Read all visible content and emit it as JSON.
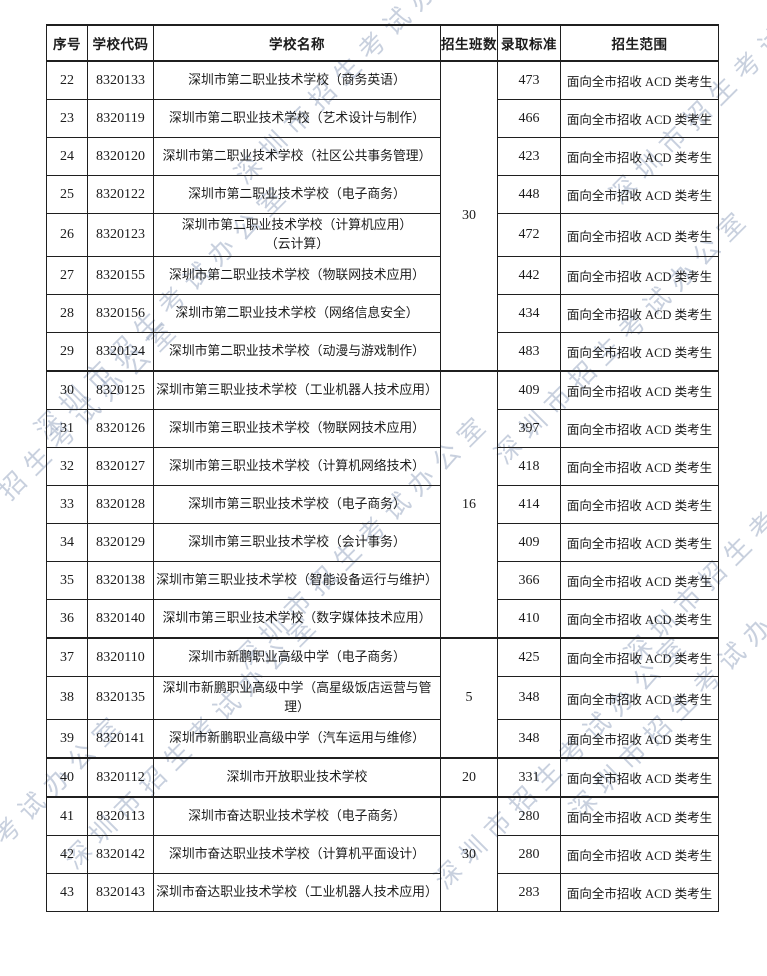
{
  "watermark": {
    "text": "深圳市招生考试办公室",
    "color": "#8b9dba"
  },
  "table": {
    "headers": [
      "序号",
      "学校代码",
      "学校名称",
      "招生班数",
      "录取标准",
      "招生范围"
    ],
    "rows": [
      {
        "no": "22",
        "code": "8320133",
        "name": "深圳市第二职业技术学校（商务英语）",
        "standard": "473",
        "scope": "面向全市招收 ACD 类考生"
      },
      {
        "no": "23",
        "code": "8320119",
        "name": "深圳市第二职业技术学校（艺术设计与制作）",
        "standard": "466",
        "scope": "面向全市招收 ACD 类考生"
      },
      {
        "no": "24",
        "code": "8320120",
        "name": "深圳市第二职业技术学校（社区公共事务管理）",
        "standard": "423",
        "scope": "面向全市招收 ACD 类考生"
      },
      {
        "no": "25",
        "code": "8320122",
        "name": "深圳市第二职业技术学校（电子商务）",
        "standard": "448",
        "scope": "面向全市招收 ACD 类考生"
      },
      {
        "no": "26",
        "code": "8320123",
        "name": "深圳市第二职业技术学校（计算机应用）\n（云计算）",
        "standard": "472",
        "scope": "面向全市招收 ACD 类考生"
      },
      {
        "no": "27",
        "code": "8320155",
        "name": "深圳市第二职业技术学校（物联网技术应用）",
        "standard": "442",
        "scope": "面向全市招收 ACD 类考生"
      },
      {
        "no": "28",
        "code": "8320156",
        "name": "深圳市第二职业技术学校（网络信息安全）",
        "standard": "434",
        "scope": "面向全市招收 ACD 类考生"
      },
      {
        "no": "29",
        "code": "8320124",
        "name": "深圳市第二职业技术学校（动漫与游戏制作）",
        "standard": "483",
        "scope": "面向全市招收 ACD 类考生"
      },
      {
        "no": "30",
        "code": "8320125",
        "name": "深圳市第三职业技术学校（工业机器人技术应用）",
        "standard": "409",
        "scope": "面向全市招收 ACD 类考生"
      },
      {
        "no": "31",
        "code": "8320126",
        "name": "深圳市第三职业技术学校（物联网技术应用）",
        "standard": "397",
        "scope": "面向全市招收 ACD 类考生"
      },
      {
        "no": "32",
        "code": "8320127",
        "name": "深圳市第三职业技术学校（计算机网络技术）",
        "standard": "418",
        "scope": "面向全市招收 ACD 类考生"
      },
      {
        "no": "33",
        "code": "8320128",
        "name": "深圳市第三职业技术学校（电子商务）",
        "standard": "414",
        "scope": "面向全市招收 ACD 类考生"
      },
      {
        "no": "34",
        "code": "8320129",
        "name": "深圳市第三职业技术学校（会计事务）",
        "standard": "409",
        "scope": "面向全市招收 ACD 类考生"
      },
      {
        "no": "35",
        "code": "8320138",
        "name": "深圳市第三职业技术学校（智能设备运行与维护）",
        "standard": "366",
        "scope": "面向全市招收 ACD 类考生"
      },
      {
        "no": "36",
        "code": "8320140",
        "name": "深圳市第三职业技术学校（数字媒体技术应用）",
        "standard": "410",
        "scope": "面向全市招收 ACD 类考生"
      },
      {
        "no": "37",
        "code": "8320110",
        "name": "深圳市新鹏职业高级中学（电子商务）",
        "standard": "425",
        "scope": "面向全市招收 ACD 类考生"
      },
      {
        "no": "38",
        "code": "8320135",
        "name": "深圳市新鹏职业高级中学（高星级饭店运营与管\n理）",
        "standard": "348",
        "scope": "面向全市招收 ACD 类考生"
      },
      {
        "no": "39",
        "code": "8320141",
        "name": "深圳市新鹏职业高级中学（汽车运用与维修）",
        "standard": "348",
        "scope": "面向全市招收 ACD 类考生"
      },
      {
        "no": "40",
        "code": "8320112",
        "name": "深圳市开放职业技术学校",
        "standard": "331",
        "scope": "面向全市招收 ACD 类考生"
      },
      {
        "no": "41",
        "code": "8320113",
        "name": "深圳市奋达职业技术学校（电子商务）",
        "standard": "280",
        "scope": "面向全市招收 ACD 类考生"
      },
      {
        "no": "42",
        "code": "8320142",
        "name": "深圳市奋达职业技术学校（计算机平面设计）",
        "standard": "280",
        "scope": "面向全市招收 ACD 类考生"
      },
      {
        "no": "43",
        "code": "8320143",
        "name": "深圳市奋达职业技术学校（工业机器人技术应用）",
        "standard": "283",
        "scope": "面向全市招收 ACD 类考生"
      }
    ],
    "class_groups": [
      {
        "start_no": "22",
        "span": 8,
        "value": "30"
      },
      {
        "start_no": "30",
        "span": 7,
        "value": "16"
      },
      {
        "start_no": "37",
        "span": 3,
        "value": "5"
      },
      {
        "start_no": "40",
        "span": 1,
        "value": "20"
      },
      {
        "start_no": "41",
        "span": 3,
        "value": "30"
      }
    ]
  }
}
